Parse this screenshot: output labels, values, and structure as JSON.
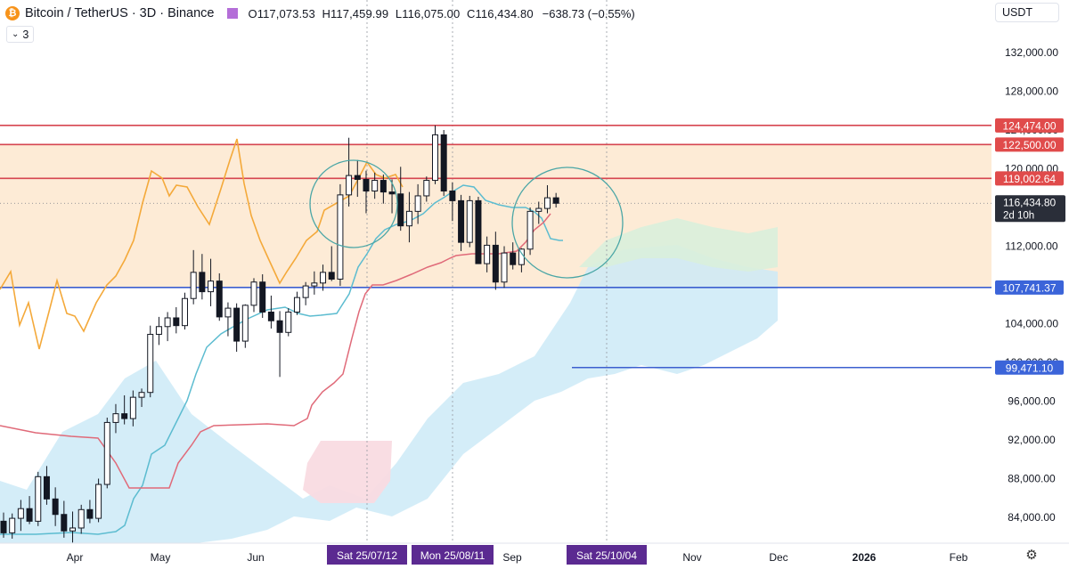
{
  "header": {
    "logo_letter": "₿",
    "title": "Bitcoin / TetherUS · 3D · Binance",
    "open_label": "O",
    "open_value": "117,073.53",
    "high_label": "H",
    "high_value": "117,459.99",
    "low_label": "L",
    "low_value": "116,075.00",
    "close_label": "C",
    "close_value": "116,434.80",
    "change": "−638.73 (−0.55%)",
    "period_value": "3",
    "currency": "USDT"
  },
  "colors": {
    "up": "#131722",
    "down": "#131722",
    "resistance": "#d64550",
    "support_blue": "#3c5fcf",
    "zone_fill": "#fdebd6",
    "orange_line": "#f4a93a",
    "cyan_line": "#5cbcd0",
    "red_line": "#e06a79",
    "cloud_blue": "#cdeaf7",
    "cloud_green": "#d9efdc",
    "cloud_red": "#f9dbe2",
    "circle": "#4aa6a6",
    "label_red": "#e04b4b",
    "label_blue": "#3b64d9",
    "label_dark": "#2a2e39"
  },
  "chart_data": {
    "type": "candlestick",
    "symbol": "BTCUSDT",
    "timeframe": "3D",
    "y_axis": {
      "ticks": [
        "84,000.00",
        "88,000.00",
        "92,000.00",
        "96,000.00",
        "100,000.00",
        "104,000.00",
        "108,000.00",
        "112,000.00",
        "116,000.00",
        "120,000.00",
        "124,000.00",
        "128,000.00",
        "132,000.00"
      ],
      "tick_values": [
        84000,
        88000,
        92000,
        96000,
        100000,
        104000,
        108000,
        112000,
        116000,
        120000,
        124000,
        128000,
        132000
      ],
      "range": [
        81000,
        135200
      ]
    },
    "x_axis": {
      "labels": [
        "Apr",
        "May",
        "Jun",
        "Sep",
        "Nov",
        "Dec",
        "2026",
        "Feb"
      ],
      "highlighted_dates": [
        "Sat 25/07/12",
        "Mon 25/08/11",
        "Sat 25/10/04"
      ]
    },
    "price_levels": [
      {
        "value": 124474,
        "label": "124,474.00",
        "kind": "resistance"
      },
      {
        "value": 122500,
        "label": "122,500.00",
        "kind": "resistance"
      },
      {
        "value": 119002.64,
        "label": "119,002.64",
        "kind": "resistance"
      },
      {
        "value": 107741.37,
        "label": "107,741.37",
        "kind": "support"
      },
      {
        "value": 99471.1,
        "label": "99,471.10",
        "kind": "support"
      }
    ],
    "current_price": {
      "value": 116434.8,
      "label": "116,434.80",
      "countdown": "2d 10h"
    },
    "candles": [
      [
        83600,
        84500,
        81900,
        82400
      ],
      [
        82400,
        84400,
        81800,
        83900
      ],
      [
        83900,
        85800,
        82600,
        84900
      ],
      [
        84900,
        86200,
        83300,
        83600
      ],
      [
        83600,
        88700,
        83100,
        88200
      ],
      [
        88200,
        89300,
        85300,
        85900
      ],
      [
        85900,
        87100,
        83100,
        84300
      ],
      [
        84300,
        85700,
        81900,
        82600
      ],
      [
        82600,
        84600,
        81400,
        82900
      ],
      [
        82900,
        85300,
        82300,
        84800
      ],
      [
        84800,
        85800,
        83400,
        83900
      ],
      [
        83900,
        88000,
        83500,
        87400
      ],
      [
        87400,
        94300,
        87000,
        93800
      ],
      [
        93800,
        95700,
        92700,
        94700
      ],
      [
        94700,
        96600,
        93600,
        94200
      ],
      [
        94200,
        97100,
        93400,
        96400
      ],
      [
        96400,
        97300,
        95400,
        96900
      ],
      [
        96900,
        103800,
        96400,
        102900
      ],
      [
        102900,
        104700,
        101800,
        103700
      ],
      [
        103700,
        105200,
        102200,
        104600
      ],
      [
        104600,
        105700,
        103000,
        103800
      ],
      [
        103800,
        107200,
        103400,
        106600
      ],
      [
        106600,
        111600,
        106000,
        109300
      ],
      [
        109300,
        111200,
        106500,
        107300
      ],
      [
        107300,
        110700,
        105800,
        108400
      ],
      [
        108400,
        109200,
        104300,
        104700
      ],
      [
        104700,
        106200,
        102700,
        105600
      ],
      [
        105600,
        106100,
        101100,
        102200
      ],
      [
        102200,
        106000,
        101500,
        105900
      ],
      [
        105900,
        108700,
        105200,
        108300
      ],
      [
        108300,
        109100,
        104600,
        105200
      ],
      [
        105200,
        106900,
        103500,
        104300
      ],
      [
        104300,
        105300,
        98500,
        103100
      ],
      [
        103100,
        105600,
        102700,
        105200
      ],
      [
        105200,
        107300,
        104900,
        106700
      ],
      [
        106700,
        108300,
        105900,
        107900
      ],
      [
        107900,
        109400,
        107000,
        108200
      ],
      [
        108200,
        110100,
        107400,
        109300
      ],
      [
        109300,
        112000,
        108400,
        108600
      ],
      [
        108600,
        118400,
        107900,
        117300
      ],
      [
        117300,
        123200,
        116100,
        119300
      ],
      [
        119300,
        120900,
        117100,
        118900
      ],
      [
        118900,
        119800,
        115400,
        117700
      ],
      [
        117700,
        119600,
        116900,
        118800
      ],
      [
        118800,
        119400,
        116400,
        117600
      ],
      [
        117600,
        118900,
        115400,
        117400
      ],
      [
        117400,
        120200,
        113600,
        114100
      ],
      [
        114100,
        117600,
        112400,
        115600
      ],
      [
        115600,
        118400,
        114300,
        117200
      ],
      [
        117200,
        119200,
        116600,
        118800
      ],
      [
        118800,
        124474,
        118400,
        123500
      ],
      [
        123500,
        124000,
        117200,
        117700
      ],
      [
        117700,
        118600,
        114600,
        116700
      ],
      [
        116700,
        117300,
        111500,
        112400
      ],
      [
        112400,
        117200,
        111900,
        116700
      ],
      [
        116700,
        117100,
        110700,
        110200
      ],
      [
        110200,
        113000,
        109300,
        112100
      ],
      [
        112100,
        113500,
        107500,
        108300
      ],
      [
        108300,
        112000,
        107700,
        111300
      ],
      [
        111300,
        112400,
        109600,
        110100
      ],
      [
        110100,
        111800,
        109300,
        111700
      ],
      [
        111700,
        116000,
        111100,
        115600
      ],
      [
        115600,
        116600,
        114300,
        115900
      ],
      [
        115900,
        118300,
        115400,
        117000
      ],
      [
        117000,
        117500,
        116000,
        116435
      ]
    ]
  }
}
